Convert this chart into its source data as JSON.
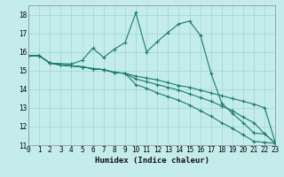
{
  "xlabel": "Humidex (Indice chaleur)",
  "background_color": "#c4ecec",
  "grid_color": "#9ed4d4",
  "line_color": "#1a7a6a",
  "xlim": [
    0,
    23
  ],
  "ylim": [
    11,
    18.5
  ],
  "xticks": [
    0,
    1,
    2,
    3,
    4,
    5,
    6,
    7,
    8,
    9,
    10,
    11,
    12,
    13,
    14,
    15,
    16,
    17,
    18,
    19,
    20,
    21,
    22,
    23
  ],
  "yticks": [
    11,
    12,
    13,
    14,
    15,
    16,
    17,
    18
  ],
  "lines": [
    {
      "x": [
        0,
        1,
        2,
        3,
        4,
        5,
        6,
        7,
        8,
        9,
        10,
        11,
        12,
        13,
        14,
        15,
        16,
        17,
        18,
        19,
        20,
        21,
        22,
        23
      ],
      "y": [
        15.8,
        15.8,
        15.4,
        15.3,
        15.25,
        15.2,
        15.1,
        15.05,
        14.9,
        14.85,
        14.7,
        14.6,
        14.5,
        14.35,
        14.2,
        14.1,
        13.95,
        13.8,
        13.65,
        13.5,
        13.35,
        13.2,
        13.0,
        11.1
      ]
    },
    {
      "x": [
        0,
        1,
        2,
        3,
        4,
        5,
        6,
        7,
        8,
        9,
        10,
        11,
        12,
        13,
        14,
        15,
        16,
        17,
        18,
        19,
        20,
        21,
        22,
        23
      ],
      "y": [
        15.8,
        15.8,
        15.4,
        15.3,
        15.25,
        15.2,
        15.1,
        15.05,
        14.9,
        14.85,
        14.55,
        14.4,
        14.25,
        14.1,
        13.95,
        13.75,
        13.55,
        13.35,
        13.1,
        12.85,
        12.5,
        12.2,
        11.6,
        11.1
      ]
    },
    {
      "x": [
        0,
        1,
        2,
        3,
        4,
        5,
        6,
        7,
        8,
        9,
        10,
        11,
        12,
        13,
        14,
        15,
        16,
        17,
        18,
        19,
        20,
        21,
        22,
        23
      ],
      "y": [
        15.8,
        15.8,
        15.4,
        15.3,
        15.25,
        15.2,
        15.1,
        15.05,
        14.9,
        14.85,
        14.25,
        14.05,
        13.8,
        13.6,
        13.4,
        13.15,
        12.85,
        12.55,
        12.2,
        11.9,
        11.55,
        11.2,
        11.15,
        11.1
      ]
    },
    {
      "x": [
        0,
        1,
        2,
        4,
        5,
        6,
        7,
        8,
        9,
        10,
        11,
        12,
        13,
        14,
        15,
        16,
        17,
        18,
        19,
        20,
        21,
        22,
        23
      ],
      "y": [
        15.8,
        15.8,
        15.4,
        15.35,
        15.55,
        16.2,
        15.7,
        16.15,
        16.5,
        18.1,
        16.0,
        16.55,
        17.05,
        17.5,
        17.65,
        16.9,
        14.85,
        13.25,
        12.7,
        12.2,
        11.65,
        11.6,
        11.1
      ]
    }
  ]
}
